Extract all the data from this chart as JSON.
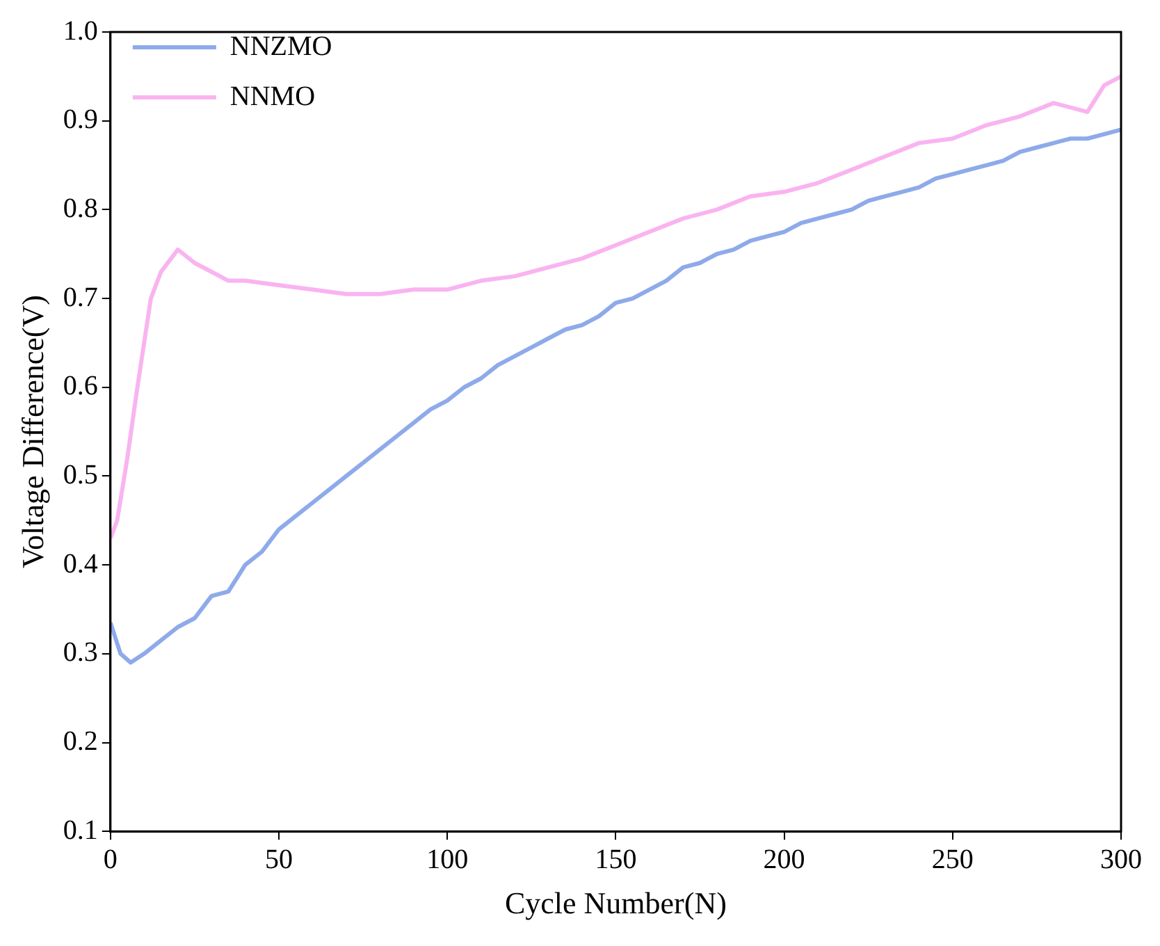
{
  "chart_data": {
    "type": "line",
    "xlabel": "Cycle Number(N)",
    "ylabel": "Voltage Difference(V)",
    "xlim": [
      0,
      300
    ],
    "xticks": [
      0,
      50,
      100,
      150,
      200,
      250,
      300
    ],
    "ylim": [
      0.1,
      1.0
    ],
    "yticks": [
      0.1,
      0.2,
      0.3,
      0.4,
      0.5,
      0.6,
      0.7,
      0.8,
      0.9,
      {
        "value": 1.0,
        "label": "1.0"
      }
    ],
    "grid": false,
    "legend": "top left",
    "marker": "none",
    "line_style": "solid",
    "series": [
      {
        "name": "NNZMO",
        "color": "#8eaaea",
        "x": [
          0,
          3,
          6,
          10,
          15,
          20,
          25,
          30,
          35,
          40,
          45,
          50,
          55,
          60,
          65,
          70,
          75,
          80,
          85,
          90,
          95,
          100,
          105,
          110,
          115,
          120,
          125,
          130,
          135,
          140,
          145,
          150,
          155,
          160,
          165,
          170,
          175,
          180,
          185,
          190,
          195,
          200,
          205,
          210,
          215,
          220,
          225,
          230,
          235,
          240,
          245,
          250,
          255,
          260,
          265,
          270,
          275,
          280,
          285,
          290,
          295,
          300
        ],
        "values": [
          0.335,
          0.3,
          0.29,
          0.3,
          0.315,
          0.33,
          0.34,
          0.365,
          0.37,
          0.4,
          0.415,
          0.44,
          0.455,
          0.47,
          0.485,
          0.5,
          0.515,
          0.53,
          0.545,
          0.56,
          0.575,
          0.585,
          0.6,
          0.61,
          0.625,
          0.635,
          0.645,
          0.655,
          0.665,
          0.67,
          0.68,
          0.695,
          0.7,
          0.71,
          0.72,
          0.735,
          0.74,
          0.75,
          0.755,
          0.765,
          0.77,
          0.775,
          0.785,
          0.79,
          0.795,
          0.8,
          0.81,
          0.815,
          0.82,
          0.825,
          0.835,
          0.84,
          0.845,
          0.85,
          0.855,
          0.865,
          0.87,
          0.875,
          0.88,
          0.88,
          0.885,
          0.89
        ]
      },
      {
        "name": "NNMO",
        "color": "#f9b4f0",
        "x": [
          0,
          2,
          5,
          8,
          10,
          12,
          15,
          20,
          25,
          30,
          35,
          40,
          50,
          60,
          70,
          80,
          90,
          100,
          110,
          120,
          130,
          140,
          150,
          160,
          170,
          180,
          190,
          200,
          210,
          220,
          230,
          240,
          250,
          260,
          270,
          280,
          290,
          295,
          300
        ],
        "values": [
          0.43,
          0.45,
          0.52,
          0.6,
          0.65,
          0.7,
          0.73,
          0.755,
          0.74,
          0.73,
          0.72,
          0.72,
          0.715,
          0.71,
          0.705,
          0.705,
          0.71,
          0.71,
          0.72,
          0.725,
          0.735,
          0.745,
          0.76,
          0.775,
          0.79,
          0.8,
          0.815,
          0.82,
          0.83,
          0.845,
          0.86,
          0.875,
          0.88,
          0.895,
          0.905,
          0.92,
          0.91,
          0.94,
          0.95
        ]
      }
    ]
  }
}
